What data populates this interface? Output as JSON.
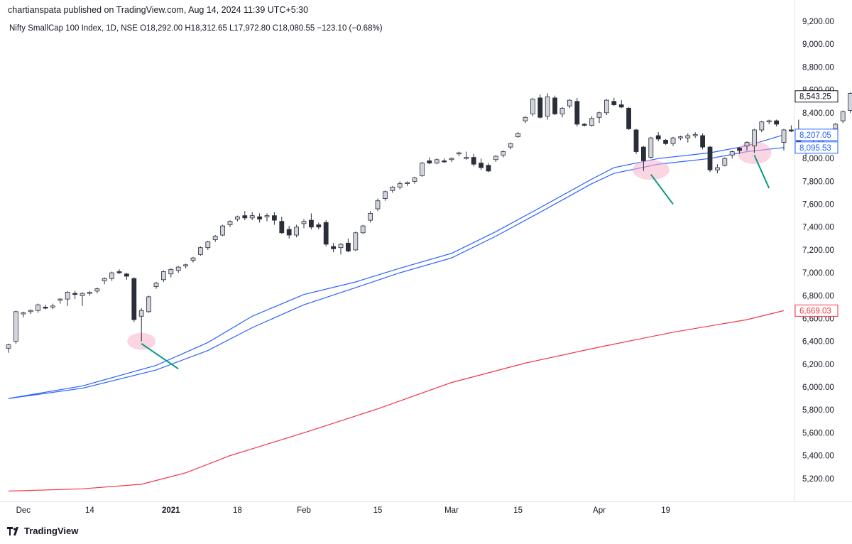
{
  "header": {
    "publisher": "chartianspata published on TradingView.com, Aug 14, 2024 11:39 UTC+5:30",
    "legend": "Nifty SmallCap 100 Index, 1D, NSE  O18,292.00  H18,312.65  L17,972.80  C18,080.55  −123.10 (−0.68%)"
  },
  "footer": {
    "brand": "TradingView",
    "logo_icon": "tradingview-logo-icon"
  },
  "colors": {
    "up_fill": "#d1d4dc",
    "down_fill": "#2a2e39",
    "candle_border": "#2a2e39",
    "ma_blue": "#2962ff",
    "ma_red": "#f23645",
    "annotation_line": "#089981",
    "highlight": "#f7b3c8"
  },
  "chart_data": {
    "type": "candlestick",
    "y_axis": {
      "range": [
        5000,
        9250
      ],
      "ticks": [
        5200,
        5400,
        5600,
        5800,
        6000,
        6200,
        6400,
        6600,
        6800,
        7000,
        7200,
        7400,
        7600,
        7800,
        8000,
        8200,
        8400,
        8600,
        8800,
        9000,
        9200
      ],
      "tick_labels": [
        "5,200.00",
        "5,400.00",
        "5,600.00",
        "5,800.00",
        "6,000.00",
        "6,200.00",
        "6,400.00",
        "6,600.00",
        "6,800.00",
        "7,000.00",
        "7,200.00",
        "7,400.00",
        "7,600.00",
        "7,800.00",
        "8,000.00",
        "8,200.00",
        "8,400.00",
        "8,600.00",
        "8,800.00",
        "9,000.00",
        "9,200.00"
      ]
    },
    "x_axis": {
      "labels": [
        {
          "text": "Dec",
          "index": 2,
          "bold": false
        },
        {
          "text": "14",
          "index": 11,
          "bold": false
        },
        {
          "text": "2021",
          "index": 22,
          "bold": true
        },
        {
          "text": "18",
          "index": 31,
          "bold": false
        },
        {
          "text": "Feb",
          "index": 40,
          "bold": false
        },
        {
          "text": "15",
          "index": 50,
          "bold": false
        },
        {
          "text": "Mar",
          "index": 60,
          "bold": false
        },
        {
          "text": "15",
          "index": 69,
          "bold": false
        },
        {
          "text": "Apr",
          "index": 80,
          "bold": false
        },
        {
          "text": "19",
          "index": 89,
          "bold": false
        }
      ]
    },
    "candles": [
      [
        6340,
        6380,
        6300,
        6370
      ],
      [
        6400,
        6670,
        6380,
        6660
      ],
      [
        6640,
        6660,
        6610,
        6650
      ],
      [
        6660,
        6680,
        6640,
        6670
      ],
      [
        6670,
        6730,
        6650,
        6720
      ],
      [
        6700,
        6720,
        6680,
        6690
      ],
      [
        6700,
        6730,
        6680,
        6710
      ],
      [
        6760,
        6780,
        6730,
        6770
      ],
      [
        6770,
        6840,
        6710,
        6830
      ],
      [
        6820,
        6840,
        6770,
        6810
      ],
      [
        6800,
        6830,
        6710,
        6820
      ],
      [
        6820,
        6840,
        6800,
        6830
      ],
      [
        6840,
        6870,
        6820,
        6860
      ],
      [
        6930,
        6960,
        6900,
        6950
      ],
      [
        6950,
        7010,
        6930,
        7000
      ],
      [
        7010,
        7030,
        6990,
        7000
      ],
      [
        6990,
        7000,
        6940,
        6970
      ],
      [
        6950,
        6960,
        6570,
        6590
      ],
      [
        6620,
        6690,
        6400,
        6670
      ],
      [
        6660,
        6800,
        6650,
        6790
      ],
      [
        6880,
        6920,
        6860,
        6910
      ],
      [
        6940,
        7020,
        6920,
        7010
      ],
      [
        6990,
        7040,
        6960,
        7030
      ],
      [
        7020,
        7060,
        7000,
        7050
      ],
      [
        7060,
        7080,
        7040,
        7070
      ],
      [
        7110,
        7140,
        7090,
        7130
      ],
      [
        7160,
        7230,
        7150,
        7220
      ],
      [
        7220,
        7280,
        7200,
        7270
      ],
      [
        7290,
        7330,
        7270,
        7320
      ],
      [
        7330,
        7420,
        7320,
        7410
      ],
      [
        7420,
        7460,
        7400,
        7450
      ],
      [
        7470,
        7500,
        7450,
        7490
      ],
      [
        7500,
        7540,
        7460,
        7480
      ],
      [
        7480,
        7530,
        7460,
        7500
      ],
      [
        7490,
        7520,
        7440,
        7470
      ],
      [
        7490,
        7520,
        7450,
        7500
      ],
      [
        7500,
        7530,
        7420,
        7460
      ],
      [
        7450,
        7490,
        7340,
        7350
      ],
      [
        7380,
        7410,
        7300,
        7330
      ],
      [
        7330,
        7420,
        7310,
        7400
      ],
      [
        7430,
        7470,
        7390,
        7450
      ],
      [
        7460,
        7520,
        7380,
        7400
      ],
      [
        7420,
        7440,
        7380,
        7400
      ],
      [
        7440,
        7460,
        7230,
        7250
      ],
      [
        7230,
        7260,
        7180,
        7210
      ],
      [
        7220,
        7260,
        7160,
        7250
      ],
      [
        7260,
        7300,
        7180,
        7190
      ],
      [
        7200,
        7360,
        7190,
        7350
      ],
      [
        7350,
        7420,
        7340,
        7410
      ],
      [
        7460,
        7540,
        7440,
        7520
      ],
      [
        7560,
        7650,
        7540,
        7630
      ],
      [
        7650,
        7720,
        7630,
        7710
      ],
      [
        7720,
        7760,
        7700,
        7750
      ],
      [
        7750,
        7800,
        7730,
        7780
      ],
      [
        7780,
        7800,
        7760,
        7790
      ],
      [
        7800,
        7840,
        7780,
        7830
      ],
      [
        7850,
        7970,
        7840,
        7960
      ],
      [
        7980,
        8010,
        7950,
        7960
      ],
      [
        7960,
        8000,
        7950,
        7990
      ],
      [
        7980,
        8000,
        7960,
        7970
      ],
      [
        7990,
        8010,
        7970,
        8000
      ],
      [
        8040,
        8060,
        8020,
        8050
      ],
      [
        8000,
        8060,
        7990,
        8010
      ],
      [
        8010,
        8040,
        7930,
        7950
      ],
      [
        7960,
        8000,
        7900,
        7920
      ],
      [
        7940,
        7960,
        7880,
        7890
      ],
      [
        7990,
        8030,
        7970,
        8020
      ],
      [
        8030,
        8070,
        8010,
        8060
      ],
      [
        8100,
        8140,
        8080,
        8130
      ],
      [
        8190,
        8230,
        8180,
        8220
      ],
      [
        8330,
        8370,
        8310,
        8360
      ],
      [
        8390,
        8530,
        8370,
        8520
      ],
      [
        8530,
        8560,
        8350,
        8360
      ],
      [
        8370,
        8570,
        8340,
        8540
      ],
      [
        8530,
        8550,
        8380,
        8390
      ],
      [
        8390,
        8450,
        8360,
        8440
      ],
      [
        8460,
        8520,
        8440,
        8510
      ],
      [
        8500,
        8530,
        8280,
        8300
      ],
      [
        8300,
        8310,
        8280,
        8290
      ],
      [
        8290,
        8370,
        8280,
        8350
      ],
      [
        8360,
        8410,
        8310,
        8400
      ],
      [
        8400,
        8520,
        8380,
        8510
      ],
      [
        8500,
        8530,
        8460,
        8470
      ],
      [
        8470,
        8510,
        8440,
        8450
      ],
      [
        8440,
        8450,
        8250,
        8260
      ],
      [
        8250,
        8260,
        8040,
        8060
      ],
      [
        8100,
        8110,
        7890,
        7980
      ],
      [
        8010,
        8190,
        8000,
        8180
      ],
      [
        8200,
        8230,
        8150,
        8170
      ],
      [
        8160,
        8170,
        8120,
        8130
      ],
      [
        8130,
        8190,
        8110,
        8180
      ],
      [
        8180,
        8200,
        8160,
        8190
      ],
      [
        8180,
        8220,
        8140,
        8200
      ],
      [
        8200,
        8230,
        8180,
        8210
      ],
      [
        8200,
        8220,
        8080,
        8100
      ],
      [
        8100,
        8110,
        7880,
        7900
      ],
      [
        7900,
        7950,
        7870,
        7920
      ],
      [
        7940,
        8010,
        7930,
        8000
      ],
      [
        8030,
        8070,
        8000,
        8060
      ],
      [
        8090,
        8100,
        8040,
        8070
      ],
      [
        8110,
        8150,
        8070,
        8140
      ],
      [
        8110,
        8260,
        8050,
        8250
      ],
      [
        8250,
        8330,
        8230,
        8320
      ],
      [
        8320,
        8340,
        8300,
        8330
      ],
      [
        8330,
        8340,
        8280,
        8300
      ],
      [
        8140,
        8260,
        8070,
        8250
      ],
      [
        8250,
        8290,
        8230,
        8240
      ],
      [
        8240,
        8340,
        8050,
        8110
      ],
      [
        8080,
        8140,
        8020,
        8130
      ],
      [
        8130,
        8160,
        8050,
        8060
      ],
      [
        8080,
        8180,
        8060,
        8170
      ],
      [
        8170,
        8260,
        8160,
        8250
      ],
      [
        8260,
        8310,
        8250,
        8300
      ],
      [
        8330,
        8420,
        8310,
        8410
      ],
      [
        8420,
        8580,
        8400,
        8570
      ],
      [
        8580,
        8600,
        8570,
        8590
      ]
    ],
    "ma_blue_1": {
      "x": [
        0,
        10,
        20,
        27,
        33,
        40,
        47,
        53,
        60,
        66,
        72,
        79,
        82,
        88,
        95,
        100,
        105
      ],
      "y": [
        5900,
        6010,
        6190,
        6390,
        6620,
        6810,
        6920,
        7040,
        7170,
        7360,
        7570,
        7820,
        7920,
        8000,
        8050,
        8110,
        8207.05
      ]
    },
    "ma_blue_2": {
      "x": [
        0,
        10,
        20,
        27,
        33,
        40,
        47,
        53,
        60,
        66,
        72,
        79,
        82,
        88,
        95,
        100,
        105
      ],
      "y": [
        5900,
        5990,
        6150,
        6320,
        6520,
        6720,
        6870,
        7000,
        7130,
        7320,
        7530,
        7780,
        7870,
        7950,
        8000,
        8060,
        8095.53
      ]
    },
    "ma_red": {
      "x": [
        0,
        10,
        18,
        24,
        30,
        40,
        50,
        60,
        70,
        80,
        90,
        100,
        105
      ],
      "y": [
        5090,
        5110,
        5150,
        5250,
        5400,
        5600,
        5810,
        6040,
        6210,
        6350,
        6480,
        6590,
        6669.03
      ]
    },
    "price_labels": [
      {
        "value": 8543.25,
        "text": "8,543.25",
        "color": "#131722"
      },
      {
        "value": 8207.05,
        "text": "8,207.05",
        "color": "#2962ff"
      },
      {
        "value": 8095.53,
        "text": "8,095.53",
        "color": "#2962ff"
      },
      {
        "value": 6669.03,
        "text": "6,669.03",
        "color": "#f23645"
      }
    ],
    "annotations": [
      {
        "type": "highlight",
        "index": 18,
        "price": 6400,
        "rx": 20,
        "ry": 12
      },
      {
        "type": "highlight",
        "index": 87,
        "price": 7900,
        "rx": 26,
        "ry": 14
      },
      {
        "type": "highlight",
        "index": 101,
        "price": 8050,
        "rx": 24,
        "ry": 16
      },
      {
        "type": "arrow",
        "from_index": 18,
        "from_price": 6380,
        "to_index": 23,
        "to_price": 6160
      },
      {
        "type": "arrow",
        "from_index": 87,
        "from_price": 7860,
        "to_index": 90,
        "to_price": 7600
      },
      {
        "type": "arrow",
        "from_index": 101,
        "from_price": 8030,
        "to_index": 103,
        "to_price": 7740
      }
    ]
  }
}
